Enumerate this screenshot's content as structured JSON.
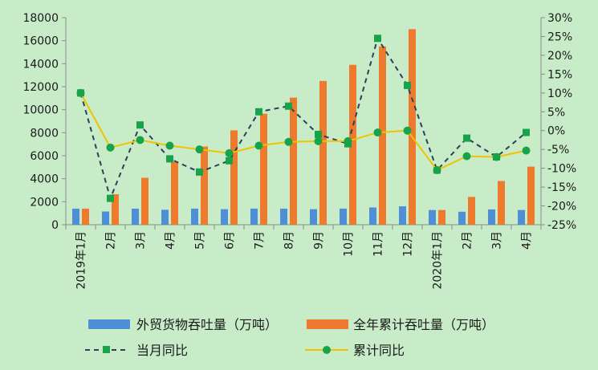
{
  "chart_data": {
    "type": "bar",
    "categories": [
      "2019年1月",
      "2月",
      "3月",
      "4月",
      "5月",
      "6月",
      "7月",
      "8月",
      "9月",
      "10月",
      "11月",
      "12月",
      "2020年1月",
      "2月",
      "3月",
      "4月"
    ],
    "series": [
      {
        "name": "外贸货物吞吐量（万吨）",
        "type": "bar",
        "axis": "left",
        "color": "#4f8fd6",
        "values": [
          1400,
          1150,
          1400,
          1300,
          1400,
          1350,
          1400,
          1400,
          1350,
          1400,
          1500,
          1600,
          1280,
          1130,
          1330,
          1280
        ]
      },
      {
        "name": "全年累计吞吐量（万吨）",
        "type": "bar",
        "axis": "left",
        "color": "#ee7a2d",
        "values": [
          1400,
          2650,
          4080,
          5450,
          6800,
          8200,
          9650,
          11050,
          12500,
          13900,
          15500,
          17000,
          1280,
          2420,
          3800,
          5050
        ]
      },
      {
        "name": "当月同比",
        "type": "line",
        "axis": "right",
        "color": "#2f3f5a",
        "marker": "square",
        "dashed": true,
        "values": [
          10,
          -18,
          1.5,
          -7.5,
          -11,
          -8,
          5,
          6.5,
          -1,
          -3.5,
          24.5,
          12,
          -10.5,
          -2,
          -7,
          -0.5
        ]
      },
      {
        "name": "累计同比",
        "type": "line",
        "axis": "right",
        "color": "#f2c200",
        "marker": "circle",
        "dashed": false,
        "values": [
          10,
          -4.5,
          -2.5,
          -4,
          -5,
          -6,
          -4,
          -3,
          -2.8,
          -2.8,
          -0.5,
          0,
          -10.5,
          -6.8,
          -7,
          -5.3
        ]
      }
    ],
    "yleft": {
      "min": 0,
      "max": 18000,
      "step": 2000
    },
    "yright": {
      "min": -25,
      "max": 30,
      "step": 5,
      "suffix": "%"
    },
    "legend_position": "bottom"
  }
}
